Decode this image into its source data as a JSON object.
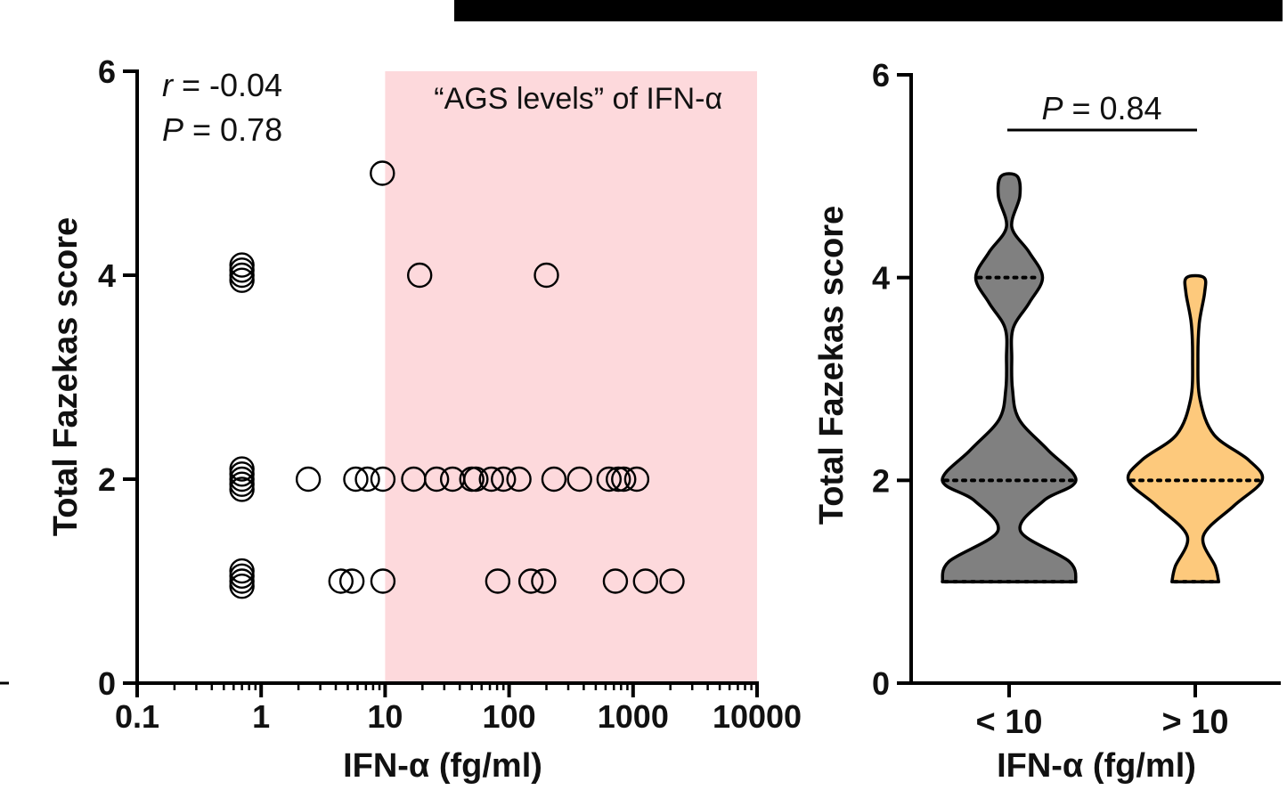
{
  "chart_data": [
    {
      "type": "scatter",
      "xlabel": "IFN-α (fg/ml)",
      "ylabel": "Total Fazekas score",
      "xscale": "log",
      "xlim": [
        0.1,
        10000
      ],
      "ylim": [
        0,
        6
      ],
      "x_ticks": [
        0.1,
        1,
        10,
        100,
        1000,
        10000
      ],
      "x_tick_labels": [
        "0.1",
        "1",
        "10",
        "100",
        "1000",
        "10000"
      ],
      "y_ticks": [
        0,
        2,
        4,
        6
      ],
      "y_tick_labels": [
        "0",
        "2",
        "4",
        "6"
      ],
      "marker": "open-circle",
      "stats": {
        "r_symbol": "r",
        "r_text": " = -0.04",
        "p_symbol": "P",
        "p_text": " = 0.78"
      },
      "shaded_region": {
        "label": "“AGS levels” of IFN-α",
        "x_range": [
          10,
          10000
        ],
        "color": "#fdd9dc"
      },
      "points": [
        {
          "x": 9.5,
          "y": 5
        },
        {
          "x": 0.7,
          "y": 4.1
        },
        {
          "x": 0.7,
          "y": 4.05
        },
        {
          "x": 0.7,
          "y": 4.0
        },
        {
          "x": 0.7,
          "y": 3.95
        },
        {
          "x": 19,
          "y": 4
        },
        {
          "x": 200,
          "y": 4
        },
        {
          "x": 0.7,
          "y": 2.1
        },
        {
          "x": 0.7,
          "y": 2.05
        },
        {
          "x": 0.7,
          "y": 2.0
        },
        {
          "x": 0.7,
          "y": 1.95
        },
        {
          "x": 0.7,
          "y": 1.9
        },
        {
          "x": 2.4,
          "y": 2
        },
        {
          "x": 5.8,
          "y": 2
        },
        {
          "x": 7.2,
          "y": 2
        },
        {
          "x": 9.6,
          "y": 2
        },
        {
          "x": 17,
          "y": 2
        },
        {
          "x": 26,
          "y": 2
        },
        {
          "x": 35,
          "y": 2
        },
        {
          "x": 50,
          "y": 2
        },
        {
          "x": 54,
          "y": 2
        },
        {
          "x": 72,
          "y": 2
        },
        {
          "x": 90,
          "y": 2
        },
        {
          "x": 120,
          "y": 2
        },
        {
          "x": 230,
          "y": 2
        },
        {
          "x": 370,
          "y": 2
        },
        {
          "x": 640,
          "y": 2
        },
        {
          "x": 760,
          "y": 2
        },
        {
          "x": 840,
          "y": 2
        },
        {
          "x": 1070,
          "y": 2
        },
        {
          "x": 0.7,
          "y": 1.1
        },
        {
          "x": 0.7,
          "y": 1.05
        },
        {
          "x": 0.7,
          "y": 1.0
        },
        {
          "x": 0.7,
          "y": 0.95
        },
        {
          "x": 4.4,
          "y": 1
        },
        {
          "x": 5.4,
          "y": 1
        },
        {
          "x": 9.6,
          "y": 1
        },
        {
          "x": 81,
          "y": 1
        },
        {
          "x": 150,
          "y": 1
        },
        {
          "x": 190,
          "y": 1
        },
        {
          "x": 720,
          "y": 1
        },
        {
          "x": 1260,
          "y": 1
        },
        {
          "x": 2060,
          "y": 1
        }
      ]
    },
    {
      "type": "violin",
      "xlabel": "IFN-α (fg/ml)",
      "ylabel": "Total Fazekas score",
      "ylim": [
        0,
        6
      ],
      "y_ticks": [
        0,
        2,
        4,
        6
      ],
      "y_tick_labels": [
        "0",
        "2",
        "4",
        "6"
      ],
      "categories": [
        "< 10",
        "> 10"
      ],
      "p_annotation": {
        "symbol": "P",
        "text": " = 0.84"
      },
      "series": [
        {
          "category": "< 10",
          "color": "#808080",
          "range": [
            1,
            5
          ],
          "quartiles": [
            1,
            2,
            4
          ],
          "density": [
            [
              1.0,
              1.0
            ],
            [
              1.2,
              0.9
            ],
            [
              1.5,
              0.17
            ],
            [
              1.8,
              0.52
            ],
            [
              2.0,
              1.0
            ],
            [
              2.3,
              0.58
            ],
            [
              2.6,
              0.15
            ],
            [
              2.9,
              0.05
            ],
            [
              3.2,
              0.04
            ],
            [
              3.5,
              0.06
            ],
            [
              3.75,
              0.3
            ],
            [
              4.0,
              0.5
            ],
            [
              4.25,
              0.3
            ],
            [
              4.5,
              0.04
            ],
            [
              4.8,
              0.16
            ],
            [
              5.0,
              0.12
            ]
          ]
        },
        {
          "category": "> 10",
          "color": "#fdc97c",
          "range": [
            1,
            4
          ],
          "quartiles": [
            1,
            2,
            2
          ],
          "density": [
            [
              1.0,
              0.35
            ],
            [
              1.15,
              0.3
            ],
            [
              1.45,
              0.12
            ],
            [
              1.75,
              0.58
            ],
            [
              2.0,
              1.0
            ],
            [
              2.2,
              0.8
            ],
            [
              2.45,
              0.28
            ],
            [
              2.8,
              0.07
            ],
            [
              3.2,
              0.04
            ],
            [
              3.55,
              0.06
            ],
            [
              3.85,
              0.14
            ],
            [
              4.0,
              0.13
            ]
          ]
        }
      ]
    }
  ]
}
